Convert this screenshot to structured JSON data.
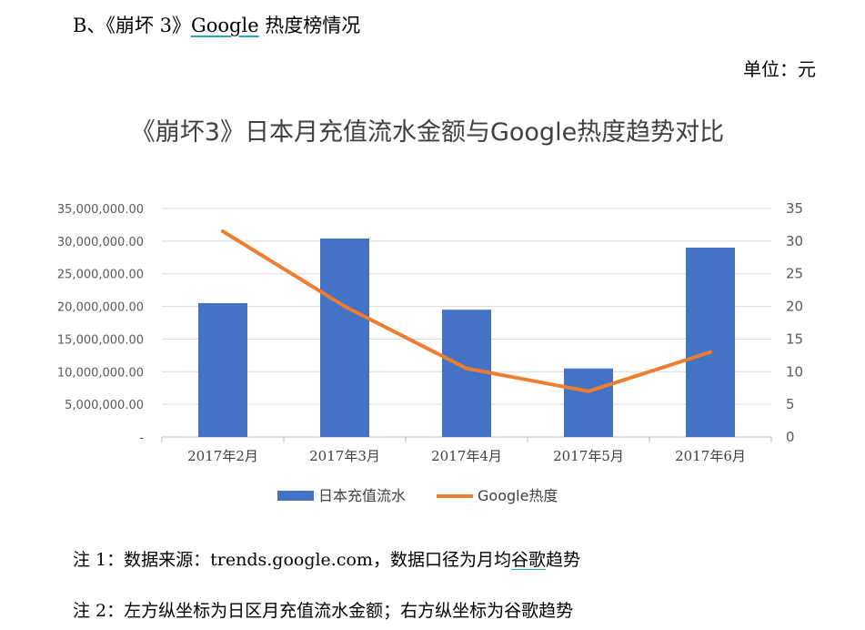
{
  "heading": {
    "prefix": "B、《崩坏 3》",
    "keyword": "Google",
    "suffix": " 热度榜情况"
  },
  "unit_label": "单位：元",
  "notes": {
    "note1_prefix": "注 1：数据来源：trends.google.com，数据口径为月均",
    "note1_keyword": "谷歌",
    "note1_suffix": "趋势",
    "note2": "注 2：左方纵坐标为日区月充值流水金额；右方纵坐标为谷歌趋势"
  },
  "chart_data": {
    "type": "bar",
    "title": "《崩坏3》日本月充值流水金额与Google热度趋势对比",
    "categories": [
      "2017年2月",
      "2017年3月",
      "2017年4月",
      "2017年5月",
      "2017年6月"
    ],
    "series": [
      {
        "name": "日本充值流水",
        "type": "bar",
        "axis": "left",
        "color": "#4472c4",
        "values": [
          20500000,
          30400000,
          19500000,
          10500000,
          29000000
        ]
      },
      {
        "name": "Google热度",
        "type": "line",
        "axis": "right",
        "color": "#ed7d31",
        "values": [
          31.5,
          20,
          10.5,
          7,
          13
        ]
      }
    ],
    "left_axis": {
      "ylim": [
        0,
        35000000
      ],
      "ticks": [
        "-",
        "5,000,000.00",
        "10,000,000.00",
        "15,000,000.00",
        "20,000,000.00",
        "25,000,000.00",
        "30,000,000.00",
        "35,000,000.00"
      ]
    },
    "right_axis": {
      "ylim": [
        0,
        35
      ],
      "ticks": [
        "0",
        "5",
        "10",
        "15",
        "20",
        "25",
        "30",
        "35"
      ]
    },
    "grid": true,
    "legend_position": "bottom"
  }
}
